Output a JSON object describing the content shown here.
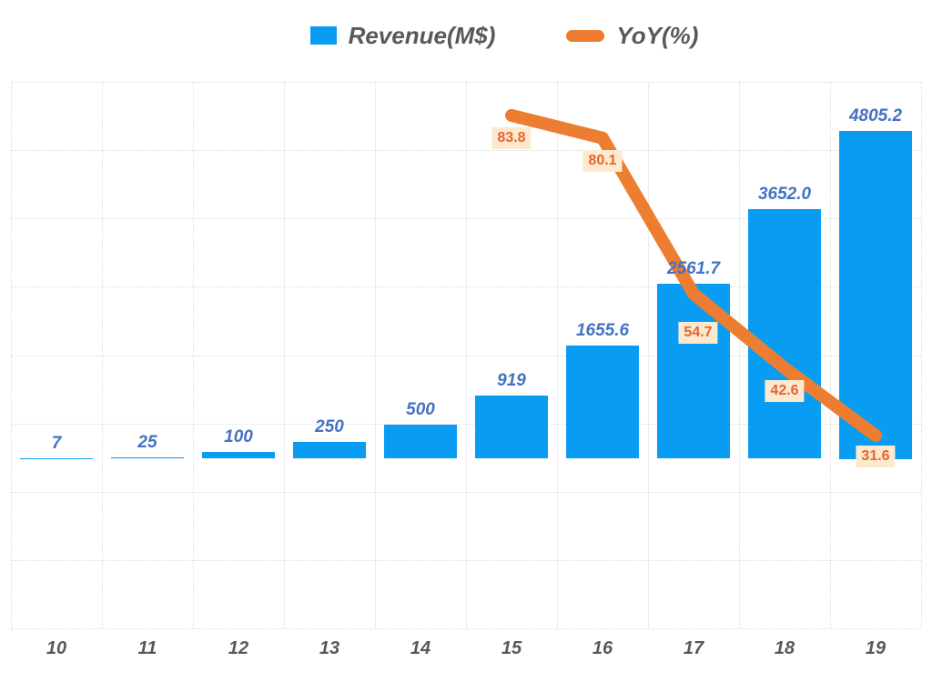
{
  "legend": [
    {
      "label": "Revenue(M$)",
      "swatch": "square",
      "color": "#089df3"
    },
    {
      "label": "YoY(%)",
      "swatch": "capsule",
      "color": "#ed7d31"
    }
  ],
  "colors": {
    "bar_fill": "#089df3",
    "bar_value_label": "#4472c4",
    "line_stroke": "#ed7d31",
    "yoy_label_bg": "#fce9d0",
    "yoy_label_text": "#e8642c",
    "axis_text": "#595959",
    "gridline": "#dcdcdc",
    "background": "#ffffff"
  },
  "chart_data": {
    "type": "combo-bar-line",
    "title": "",
    "xlabel": "",
    "ylabel": "",
    "categories": [
      "10",
      "11",
      "12",
      "13",
      "14",
      "15",
      "16",
      "17",
      "18",
      "19"
    ],
    "series": [
      {
        "name": "Revenue(M$)",
        "type": "bar",
        "color": "#089df3",
        "values": [
          7,
          25,
          100,
          250,
          500,
          919,
          1655.6,
          2561.7,
          3652.0,
          4805.2
        ],
        "value_labels": [
          "7",
          "25",
          "100",
          "250",
          "500",
          "919",
          "1655.6",
          "2561.7",
          "3652.0",
          "4805.2"
        ]
      },
      {
        "name": "YoY(%)",
        "type": "line",
        "color": "#ed7d31",
        "categories": [
          "15",
          "16",
          "17",
          "18",
          "19"
        ],
        "values": [
          83.8,
          80.1,
          54.7,
          42.6,
          31.6
        ],
        "value_labels": [
          "83.8",
          "80.1",
          "54.7",
          "42.6",
          "31.6"
        ]
      }
    ],
    "bar_axis": {
      "implied_min": -2500,
      "implied_max": 5500,
      "grid_step": 1000,
      "tick_labels_visible": false
    },
    "line_axis": {
      "tick_labels_visible": false
    },
    "grid": true,
    "legend_position": "top-center"
  }
}
